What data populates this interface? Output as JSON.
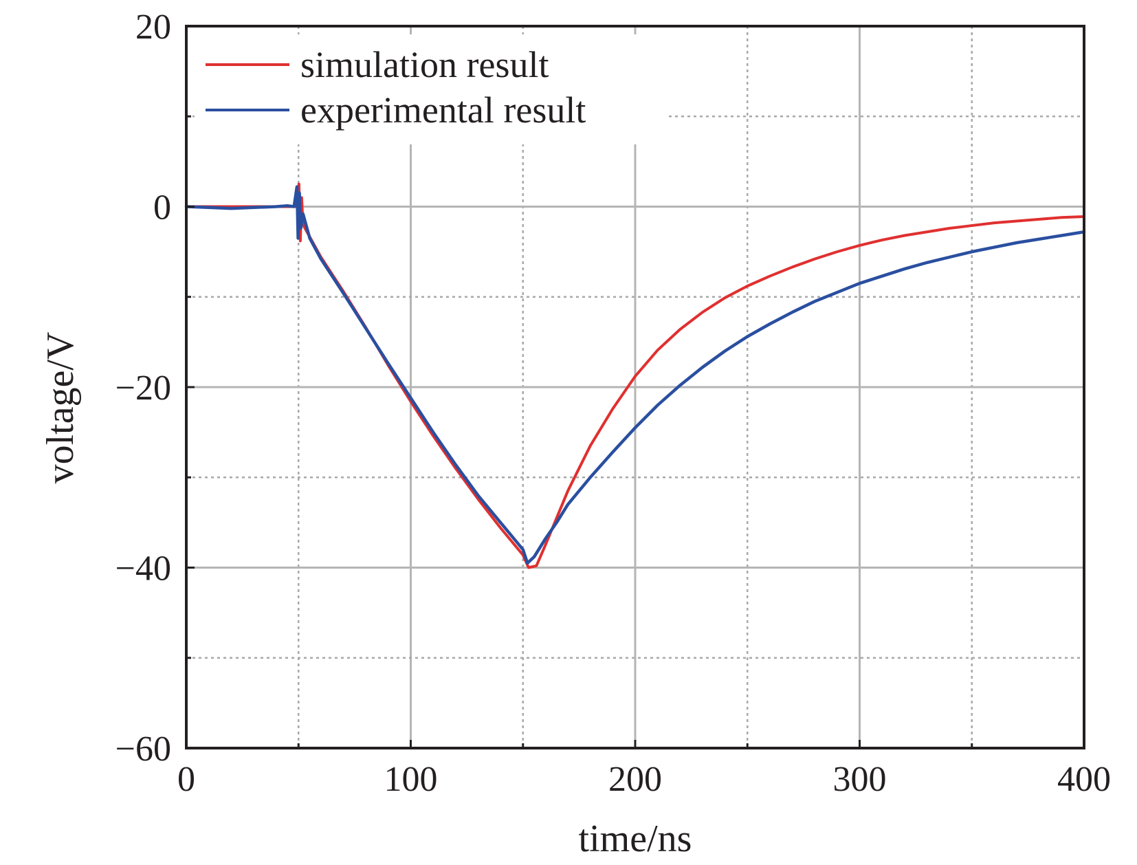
{
  "chart_data": {
    "type": "line",
    "xlabel": "time/ns",
    "ylabel": "voltage/V",
    "xlim": [
      0,
      400
    ],
    "ylim": [
      -60,
      20
    ],
    "x_ticks": [
      0,
      100,
      200,
      300,
      400
    ],
    "x_tick_labels": [
      "0",
      "100",
      "200",
      "300",
      "400"
    ],
    "y_ticks": [
      20,
      0,
      -20,
      -40,
      -60
    ],
    "y_tick_labels": [
      "20",
      "0",
      "−20",
      "−40",
      "−60"
    ],
    "grid": "on (solid major lines, dotted minor lines)",
    "legend_position": "top-left",
    "series": [
      {
        "name": "simulation result",
        "color": "#e03030",
        "points": [
          [
            0,
            0
          ],
          [
            49.5,
            0
          ],
          [
            50.2,
            2.5
          ],
          [
            50.8,
            -3.8
          ],
          [
            51.4,
            1.0
          ],
          [
            52,
            -2.0
          ],
          [
            60,
            -5.6
          ],
          [
            70,
            -9.4
          ],
          [
            80,
            -13.4
          ],
          [
            90,
            -17.6
          ],
          [
            100,
            -21.6
          ],
          [
            110,
            -25.4
          ],
          [
            120,
            -29.0
          ],
          [
            130,
            -32.4
          ],
          [
            140,
            -35.6
          ],
          [
            150,
            -38.6
          ],
          [
            152.5,
            -40
          ],
          [
            156,
            -39.8
          ],
          [
            160,
            -37.5
          ],
          [
            165,
            -34.5
          ],
          [
            170,
            -31.5
          ],
          [
            180,
            -26.5
          ],
          [
            190,
            -22.4
          ],
          [
            200,
            -18.8
          ],
          [
            210,
            -15.9
          ],
          [
            220,
            -13.6
          ],
          [
            230,
            -11.7
          ],
          [
            240,
            -10.1
          ],
          [
            250,
            -8.8
          ],
          [
            260,
            -7.7
          ],
          [
            270,
            -6.7
          ],
          [
            280,
            -5.8
          ],
          [
            290,
            -5.0
          ],
          [
            300,
            -4.3
          ],
          [
            310,
            -3.7
          ],
          [
            320,
            -3.2
          ],
          [
            330,
            -2.8
          ],
          [
            340,
            -2.4
          ],
          [
            350,
            -2.1
          ],
          [
            360,
            -1.8
          ],
          [
            370,
            -1.6
          ],
          [
            380,
            -1.4
          ],
          [
            390,
            -1.2
          ],
          [
            400,
            -1.1
          ]
        ]
      },
      {
        "name": "experimental result",
        "color": "#2a4fa0",
        "points": [
          [
            0,
            0
          ],
          [
            10,
            -0.1
          ],
          [
            20,
            -0.2
          ],
          [
            30,
            -0.1
          ],
          [
            40,
            0.0
          ],
          [
            45,
            0.1
          ],
          [
            48,
            0.0
          ],
          [
            49.3,
            2.2
          ],
          [
            49.8,
            -3.5
          ],
          [
            50.4,
            1.5
          ],
          [
            51,
            -2.4
          ],
          [
            52,
            -0.8
          ],
          [
            55,
            -3.5
          ],
          [
            60,
            -5.8
          ],
          [
            70,
            -9.6
          ],
          [
            80,
            -13.5
          ],
          [
            90,
            -17.4
          ],
          [
            100,
            -21.2
          ],
          [
            110,
            -25.0
          ],
          [
            120,
            -28.6
          ],
          [
            130,
            -32.0
          ],
          [
            140,
            -35.0
          ],
          [
            150,
            -38.0
          ],
          [
            152,
            -39.5
          ],
          [
            155,
            -38.8
          ],
          [
            160,
            -36.8
          ],
          [
            165,
            -35.0
          ],
          [
            170,
            -33.0
          ],
          [
            180,
            -30.0
          ],
          [
            190,
            -27.2
          ],
          [
            200,
            -24.5
          ],
          [
            210,
            -22.0
          ],
          [
            220,
            -19.8
          ],
          [
            230,
            -17.8
          ],
          [
            240,
            -16.0
          ],
          [
            250,
            -14.4
          ],
          [
            260,
            -13.0
          ],
          [
            270,
            -11.7
          ],
          [
            280,
            -10.5
          ],
          [
            290,
            -9.5
          ],
          [
            300,
            -8.5
          ],
          [
            310,
            -7.7
          ],
          [
            320,
            -6.9
          ],
          [
            330,
            -6.2
          ],
          [
            340,
            -5.6
          ],
          [
            350,
            -5.0
          ],
          [
            360,
            -4.5
          ],
          [
            370,
            -4.0
          ],
          [
            380,
            -3.6
          ],
          [
            390,
            -3.2
          ],
          [
            400,
            -2.8
          ]
        ]
      }
    ]
  }
}
